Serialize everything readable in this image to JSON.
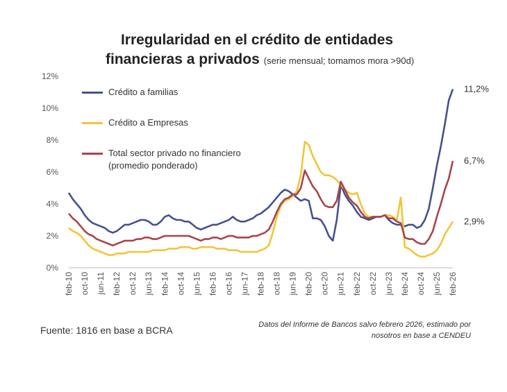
{
  "chart_data": {
    "type": "line",
    "title": "Irregularidad en el crédito de entidades",
    "title_line2": "financieras a privados",
    "subtitle": "(serie mensual; tomamos mora >90d)",
    "source": "Fuente: 1816 en base a BCRA",
    "note": "Datos del Informe de Bancos salvo febrero 2026, estimado por nosotros en base a CENDEU",
    "categories": [
      "feb-10",
      null,
      null,
      null,
      "oct-10",
      null,
      null,
      null,
      "jun-11",
      null,
      null,
      null,
      "feb-12",
      null,
      null,
      null,
      "oct-12",
      null,
      null,
      null,
      "jun-13",
      null,
      null,
      null,
      "feb-14",
      null,
      null,
      null,
      "oct-14",
      null,
      null,
      null,
      "jun-15",
      null,
      null,
      null,
      "feb-16",
      null,
      null,
      null,
      "oct-16",
      null,
      null,
      null,
      "jun-17",
      null,
      null,
      null,
      "feb-18",
      null,
      null,
      null,
      "oct-18",
      null,
      null,
      null,
      "jun-19",
      null,
      null,
      null,
      "feb-20",
      null,
      null,
      null,
      "oct-20",
      null,
      null,
      null,
      "jun-21",
      null,
      null,
      null,
      "feb-22",
      null,
      null,
      null,
      "oct-22",
      null,
      null,
      null,
      "jun-23",
      null,
      null,
      null,
      "feb-24",
      null,
      null,
      null,
      "oct-24",
      null,
      null,
      null,
      "jun-25",
      null,
      null,
      null,
      "feb-26"
    ],
    "ylim": [
      0,
      12
    ],
    "yticks": [
      {
        "value": 0,
        "label": "0%"
      },
      {
        "value": 2,
        "label": "2%"
      },
      {
        "value": 4,
        "label": "4%"
      },
      {
        "value": 6,
        "label": "6%"
      },
      {
        "value": 8,
        "label": "8%"
      },
      {
        "value": 10,
        "label": "10%"
      },
      {
        "value": 12,
        "label": "12%"
      }
    ],
    "grid": false,
    "series": [
      {
        "name": "Crédito a familias",
        "color": "#44518f",
        "values": [
          4.7,
          4.3,
          4.0,
          3.7,
          3.3,
          3.0,
          2.8,
          2.7,
          2.6,
          2.5,
          2.3,
          2.2,
          2.3,
          2.5,
          2.7,
          2.7,
          2.8,
          2.9,
          3.0,
          3.0,
          2.9,
          2.7,
          2.7,
          2.9,
          3.2,
          3.3,
          3.1,
          3.0,
          3.0,
          2.9,
          2.9,
          2.7,
          2.5,
          2.4,
          2.5,
          2.6,
          2.7,
          2.7,
          2.8,
          2.9,
          3.0,
          3.2,
          3.0,
          2.9,
          2.9,
          3.0,
          3.1,
          3.3,
          3.4,
          3.6,
          3.8,
          4.1,
          4.4,
          4.7,
          4.9,
          4.8,
          4.6,
          4.4,
          4.2,
          4.3,
          4.2,
          3.1,
          3.1,
          3.0,
          2.6,
          2.0,
          1.7,
          3.0,
          5.2,
          4.6,
          4.2,
          3.9,
          3.5,
          3.2,
          3.1,
          3.0,
          3.1,
          3.2,
          3.2,
          3.3,
          3.0,
          2.8,
          2.7,
          2.7,
          2.6,
          2.7,
          2.7,
          2.5,
          2.6,
          3.0,
          3.7,
          5.0,
          6.4,
          7.6,
          9.0,
          10.5,
          11.2
        ],
        "value_labels": [
          null,
          null,
          null,
          null,
          null,
          null,
          null,
          null,
          null,
          null,
          null,
          null,
          null,
          null,
          null,
          null,
          null,
          null,
          null,
          null,
          null,
          null,
          null,
          null,
          null,
          null,
          null,
          null,
          null,
          null,
          null,
          null,
          null,
          null,
          null,
          null,
          null,
          null,
          null,
          null,
          null,
          null,
          null,
          null,
          null,
          null,
          null,
          null,
          null,
          null,
          null,
          null,
          null,
          null,
          null,
          null,
          null,
          null,
          null,
          null,
          null,
          null,
          null,
          null,
          null,
          null,
          null,
          null,
          null,
          null,
          null,
          null,
          null,
          null,
          null,
          null,
          null,
          null,
          null,
          null,
          null,
          null,
          null,
          null,
          null,
          null,
          null,
          null,
          null,
          null,
          null,
          null,
          null,
          null,
          null,
          null,
          "11,2%"
        ]
      },
      {
        "name": "Crédito a Empresas",
        "color": "#f2c535",
        "values": [
          2.5,
          2.3,
          2.2,
          2.0,
          1.7,
          1.4,
          1.2,
          1.1,
          1.0,
          0.9,
          0.8,
          0.8,
          0.9,
          0.9,
          0.9,
          1.0,
          1.0,
          1.0,
          1.0,
          1.0,
          1.0,
          1.1,
          1.1,
          1.1,
          1.1,
          1.2,
          1.2,
          1.2,
          1.3,
          1.3,
          1.3,
          1.2,
          1.2,
          1.3,
          1.3,
          1.3,
          1.3,
          1.2,
          1.2,
          1.2,
          1.1,
          1.1,
          1.1,
          1.0,
          1.0,
          1.0,
          1.0,
          1.0,
          1.1,
          1.2,
          1.4,
          2.2,
          3.2,
          3.9,
          4.2,
          4.3,
          4.5,
          4.8,
          5.8,
          7.9,
          7.7,
          7.0,
          6.5,
          6.0,
          5.8,
          5.8,
          5.7,
          5.5,
          5.2,
          4.9,
          4.7,
          4.6,
          4.7,
          4.0,
          3.4,
          3.2,
          3.2,
          3.2,
          3.2,
          3.3,
          3.3,
          3.2,
          3.0,
          4.4,
          1.3,
          1.2,
          1.0,
          0.8,
          0.7,
          0.7,
          0.8,
          0.9,
          1.1,
          1.5,
          2.1,
          2.5,
          2.9
        ],
        "value_labels": [
          null,
          null,
          null,
          null,
          null,
          null,
          null,
          null,
          null,
          null,
          null,
          null,
          null,
          null,
          null,
          null,
          null,
          null,
          null,
          null,
          null,
          null,
          null,
          null,
          null,
          null,
          null,
          null,
          null,
          null,
          null,
          null,
          null,
          null,
          null,
          null,
          null,
          null,
          null,
          null,
          null,
          null,
          null,
          null,
          null,
          null,
          null,
          null,
          null,
          null,
          null,
          null,
          null,
          null,
          null,
          null,
          null,
          null,
          null,
          null,
          null,
          null,
          null,
          null,
          null,
          null,
          null,
          null,
          null,
          null,
          null,
          null,
          null,
          null,
          null,
          null,
          null,
          null,
          null,
          null,
          null,
          null,
          null,
          null,
          null,
          null,
          null,
          null,
          null,
          null,
          null,
          null,
          null,
          null,
          null,
          null,
          "2,9%"
        ]
      },
      {
        "name": "Total sector privado no financiero (promedio ponderado)",
        "color": "#a8444a",
        "values": [
          3.4,
          3.1,
          2.9,
          2.6,
          2.3,
          2.1,
          2.0,
          1.8,
          1.7,
          1.6,
          1.5,
          1.4,
          1.5,
          1.6,
          1.7,
          1.7,
          1.7,
          1.8,
          1.8,
          1.9,
          1.9,
          1.8,
          1.8,
          1.9,
          2.0,
          2.0,
          2.0,
          2.0,
          2.0,
          2.0,
          2.0,
          1.9,
          1.8,
          1.7,
          1.8,
          1.8,
          1.9,
          1.9,
          1.8,
          1.9,
          2.0,
          2.0,
          1.9,
          1.9,
          1.9,
          1.9,
          2.0,
          2.0,
          2.1,
          2.2,
          2.4,
          2.9,
          3.5,
          4.0,
          4.3,
          4.4,
          4.6,
          4.6,
          5.0,
          6.1,
          5.6,
          5.1,
          4.8,
          4.3,
          3.9,
          3.8,
          3.8,
          4.2,
          5.4,
          4.9,
          4.4,
          4.1,
          3.9,
          3.5,
          3.2,
          3.1,
          3.2,
          3.2,
          3.2,
          3.3,
          3.1,
          3.1,
          2.9,
          2.8,
          1.9,
          1.8,
          1.8,
          1.6,
          1.5,
          1.5,
          1.8,
          2.3,
          3.2,
          4.0,
          4.9,
          5.6,
          6.7
        ],
        "value_labels": [
          null,
          null,
          null,
          null,
          null,
          null,
          null,
          null,
          null,
          null,
          null,
          null,
          null,
          null,
          null,
          null,
          null,
          null,
          null,
          null,
          null,
          null,
          null,
          null,
          null,
          null,
          null,
          null,
          null,
          null,
          null,
          null,
          null,
          null,
          null,
          null,
          null,
          null,
          null,
          null,
          null,
          null,
          null,
          null,
          null,
          null,
          null,
          null,
          null,
          null,
          null,
          null,
          null,
          null,
          null,
          null,
          null,
          null,
          null,
          null,
          null,
          null,
          null,
          null,
          null,
          null,
          null,
          null,
          null,
          null,
          null,
          null,
          null,
          null,
          null,
          null,
          null,
          null,
          null,
          null,
          null,
          null,
          null,
          null,
          null,
          null,
          null,
          null,
          null,
          null,
          null,
          null,
          null,
          null,
          null,
          null,
          "6,7%"
        ]
      }
    ]
  }
}
